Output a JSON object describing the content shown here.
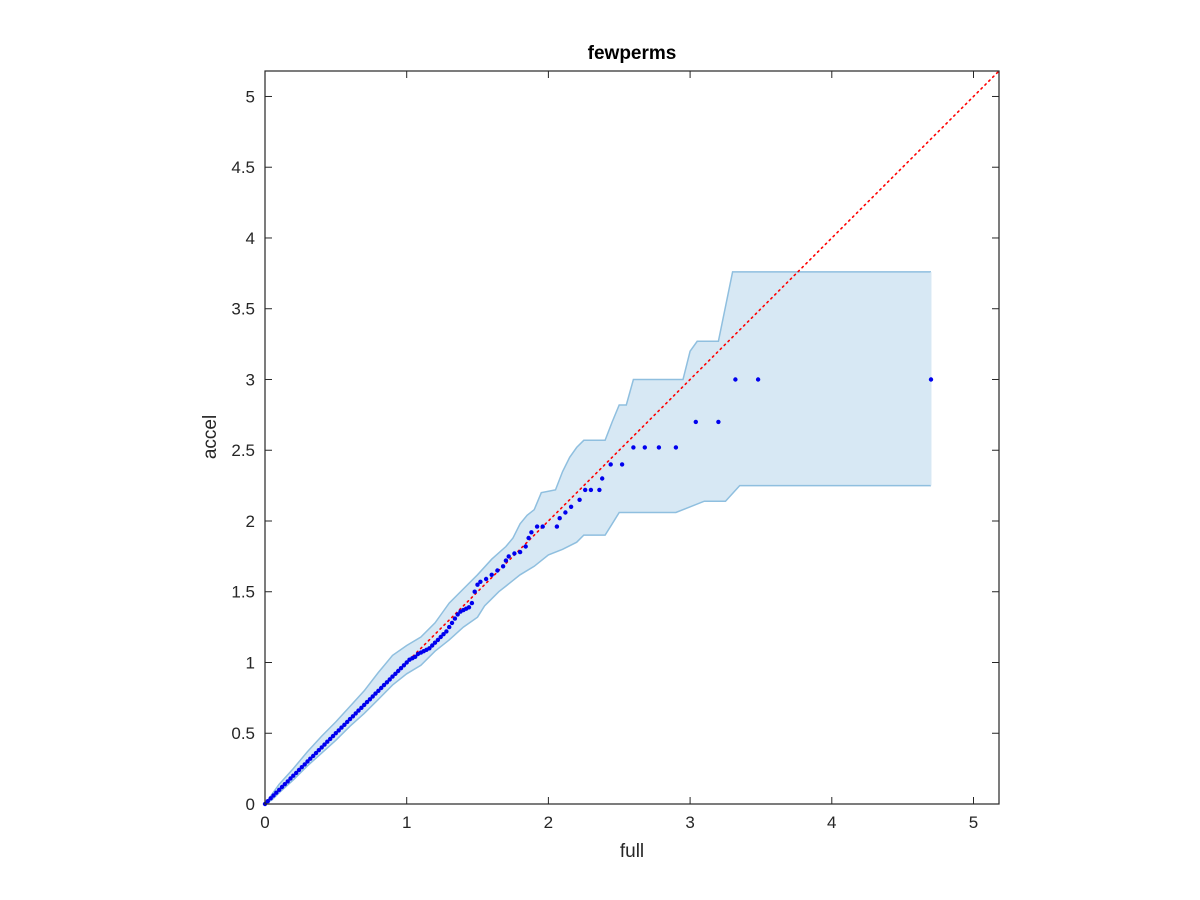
{
  "chart_data": {
    "type": "scatter",
    "title": "fewperms",
    "xlabel": "full",
    "ylabel": "accel",
    "xlim": [
      0,
      5.18
    ],
    "ylim": [
      0,
      5.18
    ],
    "xticks": [
      0,
      1,
      2,
      3,
      4,
      5
    ],
    "yticks": [
      0,
      0.5,
      1,
      1.5,
      2,
      2.5,
      3,
      3.5,
      4,
      4.5,
      5
    ],
    "xtick_labels": [
      "0",
      "1",
      "2",
      "3",
      "4",
      "5"
    ],
    "ytick_labels": [
      "0",
      "0.5",
      "1",
      "1.5",
      "2",
      "2.5",
      "3",
      "3.5",
      "4",
      "4.5",
      "5"
    ],
    "grid": false,
    "colors": {
      "points": "#0000ee",
      "reference_line": "#ff0000",
      "band_fill": "#d7e8f4",
      "band_edge": "#8fbfdf",
      "axes": "#262626"
    },
    "reference_line": {
      "style": "dotted",
      "from": [
        0,
        0
      ],
      "to": [
        5.18,
        5.18
      ]
    },
    "band": {
      "upper": [
        [
          0,
          0
        ],
        [
          0.05,
          0.07
        ],
        [
          0.1,
          0.14
        ],
        [
          0.2,
          0.25
        ],
        [
          0.3,
          0.37
        ],
        [
          0.4,
          0.48
        ],
        [
          0.5,
          0.58
        ],
        [
          0.6,
          0.69
        ],
        [
          0.7,
          0.8
        ],
        [
          0.8,
          0.93
        ],
        [
          0.9,
          1.05
        ],
        [
          1.0,
          1.12
        ],
        [
          1.1,
          1.18
        ],
        [
          1.2,
          1.28
        ],
        [
          1.25,
          1.35
        ],
        [
          1.3,
          1.42
        ],
        [
          1.4,
          1.52
        ],
        [
          1.5,
          1.62
        ],
        [
          1.6,
          1.73
        ],
        [
          1.7,
          1.82
        ],
        [
          1.75,
          1.88
        ],
        [
          1.8,
          1.98
        ],
        [
          1.85,
          2.04
        ],
        [
          1.9,
          2.08
        ],
        [
          1.95,
          2.2
        ],
        [
          2.05,
          2.22
        ],
        [
          2.1,
          2.35
        ],
        [
          2.15,
          2.45
        ],
        [
          2.2,
          2.52
        ],
        [
          2.25,
          2.57
        ],
        [
          2.4,
          2.57
        ],
        [
          2.45,
          2.7
        ],
        [
          2.5,
          2.82
        ],
        [
          2.55,
          2.82
        ],
        [
          2.6,
          3.0
        ],
        [
          2.95,
          3.0
        ],
        [
          3.0,
          3.2
        ],
        [
          3.05,
          3.27
        ],
        [
          3.2,
          3.27
        ],
        [
          3.3,
          3.76
        ],
        [
          4.7,
          3.76
        ]
      ],
      "lower": [
        [
          0,
          0
        ],
        [
          0.05,
          0.03
        ],
        [
          0.1,
          0.08
        ],
        [
          0.2,
          0.17
        ],
        [
          0.3,
          0.27
        ],
        [
          0.4,
          0.36
        ],
        [
          0.5,
          0.45
        ],
        [
          0.6,
          0.55
        ],
        [
          0.7,
          0.64
        ],
        [
          0.8,
          0.74
        ],
        [
          0.9,
          0.84
        ],
        [
          1.0,
          0.92
        ],
        [
          1.1,
          0.98
        ],
        [
          1.2,
          1.08
        ],
        [
          1.3,
          1.16
        ],
        [
          1.4,
          1.25
        ],
        [
          1.5,
          1.32
        ],
        [
          1.55,
          1.4
        ],
        [
          1.6,
          1.45
        ],
        [
          1.65,
          1.5
        ],
        [
          1.7,
          1.54
        ],
        [
          1.75,
          1.58
        ],
        [
          1.8,
          1.62
        ],
        [
          1.9,
          1.68
        ],
        [
          2.0,
          1.76
        ],
        [
          2.1,
          1.8
        ],
        [
          2.2,
          1.85
        ],
        [
          2.25,
          1.9
        ],
        [
          2.4,
          1.9
        ],
        [
          2.45,
          1.98
        ],
        [
          2.5,
          2.06
        ],
        [
          2.9,
          2.06
        ],
        [
          3.1,
          2.14
        ],
        [
          3.25,
          2.14
        ],
        [
          3.35,
          2.25
        ],
        [
          4.7,
          2.25
        ]
      ]
    },
    "series": [
      {
        "points": [
          [
            0.0,
            0.0
          ],
          [
            0.02,
            0.02
          ],
          [
            0.04,
            0.04
          ],
          [
            0.06,
            0.06
          ],
          [
            0.08,
            0.08
          ],
          [
            0.1,
            0.1
          ],
          [
            0.12,
            0.12
          ],
          [
            0.14,
            0.14
          ],
          [
            0.16,
            0.16
          ],
          [
            0.18,
            0.18
          ],
          [
            0.2,
            0.2
          ],
          [
            0.22,
            0.22
          ],
          [
            0.24,
            0.24
          ],
          [
            0.26,
            0.26
          ],
          [
            0.28,
            0.28
          ],
          [
            0.3,
            0.3
          ],
          [
            0.32,
            0.32
          ],
          [
            0.34,
            0.34
          ],
          [
            0.36,
            0.36
          ],
          [
            0.38,
            0.38
          ],
          [
            0.4,
            0.4
          ],
          [
            0.42,
            0.42
          ],
          [
            0.44,
            0.44
          ],
          [
            0.46,
            0.46
          ],
          [
            0.48,
            0.48
          ],
          [
            0.5,
            0.5
          ],
          [
            0.52,
            0.52
          ],
          [
            0.54,
            0.54
          ],
          [
            0.56,
            0.56
          ],
          [
            0.58,
            0.58
          ],
          [
            0.6,
            0.6
          ],
          [
            0.62,
            0.62
          ],
          [
            0.64,
            0.64
          ],
          [
            0.66,
            0.66
          ],
          [
            0.68,
            0.68
          ],
          [
            0.7,
            0.7
          ],
          [
            0.72,
            0.72
          ],
          [
            0.74,
            0.74
          ],
          [
            0.76,
            0.76
          ],
          [
            0.78,
            0.78
          ],
          [
            0.8,
            0.8
          ],
          [
            0.82,
            0.82
          ],
          [
            0.84,
            0.84
          ],
          [
            0.86,
            0.86
          ],
          [
            0.88,
            0.88
          ],
          [
            0.9,
            0.9
          ],
          [
            0.92,
            0.92
          ],
          [
            0.94,
            0.94
          ],
          [
            0.96,
            0.96
          ],
          [
            0.98,
            0.98
          ],
          [
            1.0,
            1.0
          ],
          [
            1.02,
            1.02
          ],
          [
            1.04,
            1.03
          ],
          [
            1.06,
            1.04
          ],
          [
            1.08,
            1.06
          ],
          [
            1.1,
            1.07
          ],
          [
            1.12,
            1.08
          ],
          [
            1.14,
            1.09
          ],
          [
            1.16,
            1.1
          ],
          [
            1.18,
            1.12
          ],
          [
            1.2,
            1.14
          ],
          [
            1.22,
            1.16
          ],
          [
            1.24,
            1.18
          ],
          [
            1.26,
            1.2
          ],
          [
            1.28,
            1.22
          ],
          [
            1.3,
            1.25
          ],
          [
            1.32,
            1.28
          ],
          [
            1.34,
            1.31
          ],
          [
            1.36,
            1.34
          ],
          [
            1.38,
            1.36
          ],
          [
            1.4,
            1.37
          ],
          [
            1.42,
            1.38
          ],
          [
            1.44,
            1.39
          ],
          [
            1.46,
            1.42
          ],
          [
            1.48,
            1.5
          ],
          [
            1.5,
            1.55
          ],
          [
            1.52,
            1.57
          ],
          [
            1.56,
            1.59
          ],
          [
            1.6,
            1.62
          ],
          [
            1.64,
            1.65
          ],
          [
            1.68,
            1.68
          ],
          [
            1.7,
            1.72
          ],
          [
            1.72,
            1.75
          ],
          [
            1.76,
            1.77
          ],
          [
            1.8,
            1.78
          ],
          [
            1.84,
            1.82
          ],
          [
            1.86,
            1.88
          ],
          [
            1.88,
            1.92
          ],
          [
            1.92,
            1.96
          ],
          [
            1.96,
            1.96
          ],
          [
            2.06,
            1.96
          ],
          [
            2.08,
            2.02
          ],
          [
            2.12,
            2.06
          ],
          [
            2.16,
            2.1
          ],
          [
            2.22,
            2.15
          ],
          [
            2.26,
            2.22
          ],
          [
            2.3,
            2.22
          ],
          [
            2.36,
            2.22
          ],
          [
            2.38,
            2.3
          ],
          [
            2.44,
            2.4
          ],
          [
            2.52,
            2.4
          ],
          [
            2.6,
            2.52
          ],
          [
            2.68,
            2.52
          ],
          [
            2.78,
            2.52
          ],
          [
            2.9,
            2.52
          ],
          [
            3.04,
            2.7
          ],
          [
            3.2,
            2.7
          ],
          [
            3.32,
            3.0
          ],
          [
            3.48,
            3.0
          ],
          [
            4.7,
            3.0
          ]
        ]
      }
    ]
  }
}
